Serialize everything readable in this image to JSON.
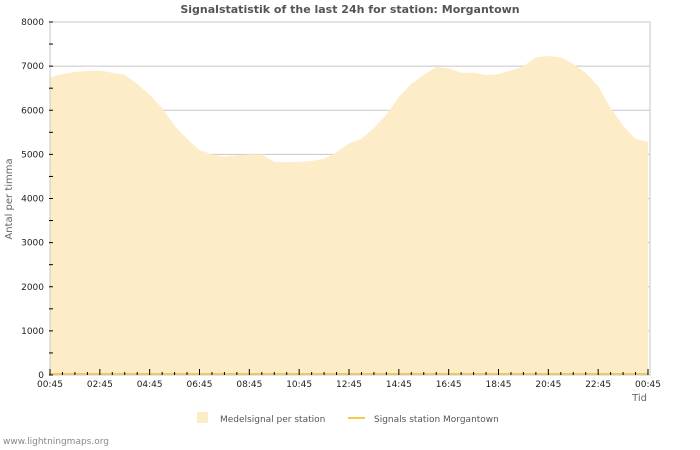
{
  "title": "Signalstatistik of the last 24h for station: Morgantown",
  "footer": "www.lightningmaps.org",
  "colors": {
    "area_fill": "#fdecc8",
    "line": "#f5c94a",
    "grid": "#c8c8c8",
    "frame": "#c8c8c8"
  },
  "chart_data": {
    "type": "area",
    "title": "Signalstatistik of the last 24h for station: Morgantown",
    "xlabel": "Tid",
    "ylabel": "Antal per timma",
    "ylim": [
      0,
      8000
    ],
    "yticks": [
      0,
      1000,
      2000,
      3000,
      4000,
      5000,
      6000,
      7000,
      8000
    ],
    "xticks": [
      "00:45",
      "02:45",
      "04:45",
      "06:45",
      "08:45",
      "10:45",
      "12:45",
      "14:45",
      "16:45",
      "18:45",
      "20:45",
      "22:45",
      "00:45"
    ],
    "grid": true,
    "legend_position": "bottom",
    "legend": [
      "Medelsignal per station",
      "Signals station Morgantown"
    ],
    "x": [
      "00:45",
      "01:15",
      "01:45",
      "02:15",
      "02:45",
      "03:15",
      "03:45",
      "04:15",
      "04:45",
      "05:15",
      "05:45",
      "06:15",
      "06:45",
      "07:15",
      "07:45",
      "08:15",
      "08:45",
      "09:15",
      "09:45",
      "10:15",
      "10:45",
      "11:15",
      "11:45",
      "12:15",
      "12:45",
      "13:15",
      "13:45",
      "14:15",
      "14:45",
      "15:15",
      "15:45",
      "16:15",
      "16:45",
      "17:15",
      "17:45",
      "18:15",
      "18:45",
      "19:15",
      "19:45",
      "20:15",
      "20:45",
      "21:15",
      "21:45",
      "22:15",
      "22:45",
      "23:15",
      "23:45",
      "00:15",
      "00:45"
    ],
    "series": [
      {
        "name": "Medelsignal per station",
        "type": "area",
        "values": [
          6750,
          6820,
          6870,
          6890,
          6900,
          6850,
          6800,
          6600,
          6350,
          6050,
          5650,
          5350,
          5100,
          5000,
          4950,
          4980,
          5000,
          5000,
          4830,
          4820,
          4830,
          4850,
          4900,
          5050,
          5250,
          5350,
          5600,
          5900,
          6300,
          6600,
          6800,
          6980,
          6950,
          6850,
          6850,
          6800,
          6820,
          6900,
          7000,
          7200,
          7230,
          7200,
          7050,
          6850,
          6550,
          6050,
          5650,
          5350,
          5280
        ]
      },
      {
        "name": "Signals station Morgantown",
        "type": "line",
        "values": [
          0,
          0,
          0,
          0,
          0,
          0,
          0,
          0,
          0,
          0,
          0,
          0,
          0,
          0,
          0,
          0,
          0,
          0,
          0,
          0,
          0,
          0,
          0,
          0,
          0,
          0,
          0,
          0,
          0,
          0,
          0,
          0,
          0,
          0,
          0,
          0,
          0,
          0,
          0,
          0,
          0,
          0,
          0,
          0,
          0,
          0,
          0,
          0,
          0
        ]
      }
    ]
  }
}
